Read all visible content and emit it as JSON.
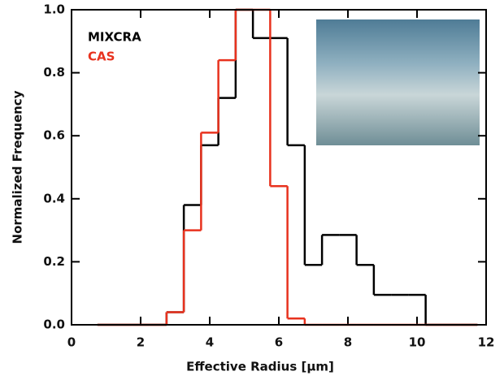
{
  "chart_data": {
    "type": "histogram",
    "xlabel": "Effective Radius [µm]",
    "ylabel": "Normalized Frequency",
    "bins": [
      0.75,
      1.25,
      1.75,
      2.25,
      2.75,
      3.25,
      3.75,
      4.25,
      4.75,
      5.25,
      5.75,
      6.25,
      6.75,
      7.25,
      7.75,
      8.25,
      8.75,
      9.25,
      9.75,
      10.25,
      10.75,
      11.25,
      11.75
    ],
    "series": [
      {
        "name": "MIXCRA",
        "color": "#000000",
        "values": [
          0,
          0,
          0,
          0,
          0.04,
          0.38,
          0.57,
          0.72,
          1.0,
          0.91,
          0.91,
          0.57,
          0.19,
          0.285,
          0.285,
          0.19,
          0.095,
          0.095,
          0.095,
          0,
          0,
          0
        ]
      },
      {
        "name": "CAS",
        "color": "#e8321e",
        "values": [
          0,
          0,
          0,
          0,
          0.04,
          0.3,
          0.61,
          0.84,
          1.0,
          1.0,
          0.44,
          0.02,
          0,
          0,
          0,
          0,
          0,
          0,
          0,
          0,
          0,
          0
        ]
      }
    ],
    "xlim": [
      0,
      12
    ],
    "xticks": [
      0,
      2,
      4,
      6,
      8,
      10,
      12
    ],
    "ylim": [
      0,
      1.0
    ],
    "yticks": [
      {
        "value": 0,
        "label": "0.0"
      },
      0.2,
      0.4,
      0.6,
      0.8,
      {
        "value": 1,
        "label": "1.0"
      }
    ]
  }
}
